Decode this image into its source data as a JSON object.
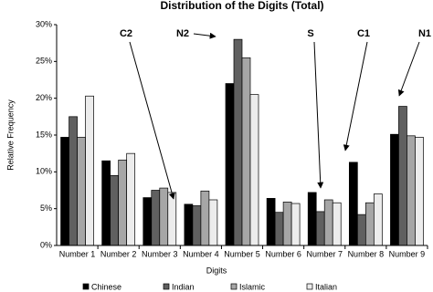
{
  "chart_data": {
    "type": "bar",
    "title": "Distribution  of the Digits (Total)",
    "x_label": "Digits",
    "y_label": "Relative Frequency",
    "categories": [
      "Number 1",
      "Number 2",
      "Number 3",
      "Number 4",
      "Number 5",
      "Number 6",
      "Number 7",
      "Number 8",
      "Number 9"
    ],
    "series": [
      {
        "name": "Chinese",
        "color": "#000000",
        "values": [
          14.7,
          11.5,
          6.5,
          5.6,
          22.0,
          6.4,
          7.2,
          11.3,
          15.1
        ]
      },
      {
        "name": "Indian",
        "color": "#606060",
        "values": [
          17.5,
          9.5,
          7.5,
          5.4,
          28.0,
          4.5,
          4.6,
          4.2,
          18.9
        ]
      },
      {
        "name": "Islamic",
        "color": "#a6a6a6",
        "values": [
          14.7,
          11.6,
          7.8,
          7.4,
          25.5,
          5.9,
          6.2,
          5.8,
          14.9
        ]
      },
      {
        "name": "Italian",
        "color": "#ececec",
        "values": [
          20.3,
          12.5,
          7.2,
          6.2,
          20.5,
          5.7,
          5.8,
          7.0,
          14.7
        ]
      }
    ],
    "ylim": [
      0,
      30
    ],
    "yticks": [
      {
        "value": 0,
        "label": "0%"
      },
      {
        "value": 5,
        "label": "5%"
      },
      {
        "value": 10,
        "label": "10%"
      },
      {
        "value": 15,
        "label": "15%"
      },
      {
        "value": 20,
        "label": "20%"
      },
      {
        "value": 25,
        "label": "25%"
      },
      {
        "value": 30,
        "label": "30%"
      }
    ],
    "grid": false,
    "annotations": [
      "C2",
      "N2",
      "S",
      "C1",
      "N1"
    ]
  }
}
